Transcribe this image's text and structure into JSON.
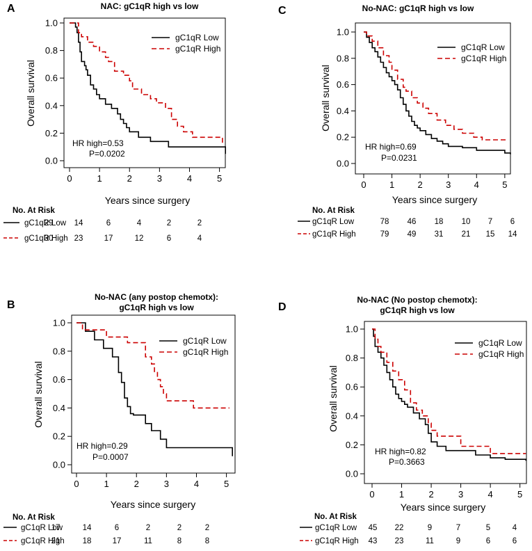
{
  "chart_data": [
    {
      "type": "line",
      "panel": "A",
      "title": [
        "NAC: gC1qR high vs low"
      ],
      "xlabel": "Years since surgery",
      "ylabel": "Overall survival",
      "xlim": [
        0,
        5.2
      ],
      "ylim": [
        0,
        1
      ],
      "xticks": [
        "0",
        "1",
        "2",
        "3",
        "4",
        "5"
      ],
      "yticks": [
        "0.0",
        "0.2",
        "0.4",
        "0.6",
        "0.8",
        "1.0"
      ],
      "legend": {
        "placement": "top-right",
        "low": "gC1qR Low",
        "high": "gC1qR High"
      },
      "annotation": [
        "HR high=0.53",
        "P=0.0202"
      ],
      "series": [
        {
          "name": "gC1qR Low",
          "style": "solid",
          "color": "#000000",
          "x": [
            0,
            0.1,
            0.2,
            0.25,
            0.3,
            0.35,
            0.4,
            0.5,
            0.55,
            0.6,
            0.7,
            0.8,
            0.9,
            1.0,
            1.2,
            1.4,
            1.6,
            1.7,
            1.8,
            1.9,
            2.0,
            2.3,
            2.7,
            3.3,
            3.8,
            5.2
          ],
          "y": [
            1,
            1,
            0.97,
            0.93,
            0.86,
            0.79,
            0.72,
            0.69,
            0.66,
            0.62,
            0.55,
            0.52,
            0.48,
            0.45,
            0.41,
            0.38,
            0.34,
            0.3,
            0.27,
            0.24,
            0.21,
            0.17,
            0.14,
            0.1,
            0.1,
            0.05
          ]
        },
        {
          "name": "gC1qR High",
          "style": "dashed",
          "color": "#cc0000",
          "x": [
            0,
            0.2,
            0.3,
            0.4,
            0.6,
            0.8,
            1.0,
            1.2,
            1.3,
            1.5,
            1.8,
            2.0,
            2.1,
            2.4,
            2.7,
            2.9,
            3.2,
            3.4,
            3.6,
            3.8,
            4.1,
            5.1
          ],
          "y": [
            1,
            1,
            0.93,
            0.9,
            0.86,
            0.83,
            0.79,
            0.75,
            0.72,
            0.65,
            0.62,
            0.58,
            0.52,
            0.48,
            0.45,
            0.42,
            0.38,
            0.3,
            0.25,
            0.21,
            0.17,
            0.13
          ]
        }
      ],
      "at_risk": {
        "header": "No. At Risk",
        "rows": [
          {
            "label": "gC1qR Low",
            "style": "solid",
            "values": [
              "29",
              "14",
              "6",
              "4",
              "2",
              "2"
            ]
          },
          {
            "label": "gC1qR High",
            "style": "dashed",
            "values": [
              "30",
              "23",
              "17",
              "12",
              "6",
              "4"
            ]
          }
        ]
      }
    },
    {
      "type": "line",
      "panel": "C",
      "title": [
        "No-NAC: gC1qR high vs low"
      ],
      "xlabel": "Years since surgery",
      "ylabel": "Overall survival",
      "xlim": [
        0,
        5.2
      ],
      "ylim": [
        0,
        1
      ],
      "xticks": [
        "0",
        "1",
        "2",
        "3",
        "4",
        "5"
      ],
      "yticks": [
        "0.0",
        "0.2",
        "0.4",
        "0.6",
        "0.8",
        "1.0"
      ],
      "legend": {
        "placement": "top-right",
        "low": "gC1qR Low",
        "high": "gC1qR High"
      },
      "annotation": [
        "HR high=0.69",
        "P=0.0231"
      ],
      "series": [
        {
          "name": "gC1qR Low",
          "style": "solid",
          "color": "#000000",
          "x": [
            0,
            0.1,
            0.2,
            0.3,
            0.4,
            0.5,
            0.6,
            0.7,
            0.8,
            0.9,
            1.0,
            1.1,
            1.2,
            1.3,
            1.4,
            1.5,
            1.6,
            1.7,
            1.8,
            1.9,
            2.0,
            2.2,
            2.4,
            2.6,
            2.8,
            3.0,
            3.5,
            4.0,
            5.0,
            5.2
          ],
          "y": [
            1,
            0.96,
            0.92,
            0.88,
            0.85,
            0.81,
            0.77,
            0.73,
            0.69,
            0.66,
            0.63,
            0.6,
            0.56,
            0.5,
            0.45,
            0.4,
            0.36,
            0.32,
            0.29,
            0.27,
            0.25,
            0.22,
            0.19,
            0.17,
            0.15,
            0.13,
            0.12,
            0.1,
            0.08,
            0.07
          ]
        },
        {
          "name": "gC1qR High",
          "style": "dashed",
          "color": "#cc0000",
          "x": [
            0,
            0.1,
            0.3,
            0.5,
            0.7,
            0.9,
            1.0,
            1.2,
            1.4,
            1.5,
            1.7,
            1.9,
            2.1,
            2.3,
            2.6,
            2.9,
            3.2,
            3.5,
            3.9,
            4.2,
            5.1
          ],
          "y": [
            1,
            0.97,
            0.93,
            0.88,
            0.82,
            0.77,
            0.71,
            0.64,
            0.58,
            0.55,
            0.5,
            0.46,
            0.42,
            0.38,
            0.33,
            0.29,
            0.26,
            0.23,
            0.2,
            0.18,
            0.18
          ]
        }
      ],
      "at_risk": {
        "header": "No. At Risk",
        "rows": [
          {
            "label": "gC1qR Low",
            "style": "solid",
            "values": [
              "78",
              "46",
              "18",
              "10",
              "7",
              "6"
            ]
          },
          {
            "label": "gC1qR High",
            "style": "dashed",
            "values": [
              "79",
              "49",
              "31",
              "21",
              "15",
              "14"
            ]
          }
        ]
      }
    },
    {
      "type": "line",
      "panel": "B",
      "title": [
        "No-NAC (any postop chemotx):",
        "gC1qR high vs low"
      ],
      "xlabel": "Years since surgery",
      "ylabel": "Overall survival",
      "xlim": [
        0,
        5.2
      ],
      "ylim": [
        0,
        1
      ],
      "xticks": [
        "0",
        "1",
        "2",
        "3",
        "4",
        "5"
      ],
      "yticks": [
        "0.0",
        "0.2",
        "0.4",
        "0.6",
        "0.8",
        "1.0"
      ],
      "legend": {
        "placement": "top-right",
        "low": "gC1qR Low",
        "high": "gC1qR High"
      },
      "annotation": [
        "HR high=0.29",
        "P=0.0007"
      ],
      "series": [
        {
          "name": "gC1qR Low",
          "style": "solid",
          "color": "#000000",
          "x": [
            0,
            0.3,
            0.6,
            0.9,
            1.2,
            1.4,
            1.5,
            1.6,
            1.7,
            1.8,
            1.9,
            2.0,
            2.3,
            2.5,
            2.8,
            3.0,
            5.0,
            5.2
          ],
          "y": [
            1,
            0.94,
            0.88,
            0.82,
            0.76,
            0.65,
            0.58,
            0.47,
            0.41,
            0.36,
            0.35,
            0.35,
            0.29,
            0.24,
            0.18,
            0.12,
            0.12,
            0.06
          ]
        },
        {
          "name": "gC1qR High",
          "style": "dashed",
          "color": "#cc0000",
          "x": [
            0,
            0.2,
            1.0,
            1.7,
            2.3,
            2.5,
            2.6,
            2.7,
            2.8,
            2.9,
            3.0,
            3.5,
            3.9,
            4.2,
            5.1
          ],
          "y": [
            1,
            0.95,
            0.9,
            0.86,
            0.76,
            0.71,
            0.65,
            0.6,
            0.55,
            0.5,
            0.45,
            0.45,
            0.4,
            0.4,
            0.4
          ]
        }
      ],
      "at_risk": {
        "header": "No. At Risk",
        "rows": [
          {
            "label": "gC1qR Low",
            "style": "solid",
            "values": [
              "17",
              "14",
              "6",
              "2",
              "2",
              "2"
            ]
          },
          {
            "label": "gC1qR High",
            "style": "dashed",
            "values": [
              "21",
              "18",
              "17",
              "11",
              "8",
              "8"
            ]
          }
        ]
      }
    },
    {
      "type": "line",
      "panel": "D",
      "title": [
        "No-NAC (No postop chemotx):",
        "gC1qR high vs low"
      ],
      "xlabel": "Years since surgery",
      "ylabel": "Overall survival",
      "xlim": [
        0,
        5.2
      ],
      "ylim": [
        0,
        1
      ],
      "xticks": [
        "0",
        "1",
        "2",
        "3",
        "4",
        "5"
      ],
      "yticks": [
        "0.0",
        "0.2",
        "0.4",
        "0.6",
        "0.8",
        "1.0"
      ],
      "legend": {
        "placement": "top-right",
        "low": "gC1qR Low",
        "high": "gC1qR High"
      },
      "annotation": [
        "HR high=0.82",
        "P=0.3663"
      ],
      "series": [
        {
          "name": "gC1qR Low",
          "style": "solid",
          "color": "#000000",
          "x": [
            0,
            0.05,
            0.1,
            0.2,
            0.3,
            0.4,
            0.5,
            0.6,
            0.7,
            0.8,
            0.9,
            1.0,
            1.1,
            1.2,
            1.4,
            1.6,
            1.8,
            1.9,
            2.0,
            2.2,
            2.5,
            3.0,
            3.5,
            4.0,
            4.5,
            5.2
          ],
          "y": [
            1,
            0.95,
            0.88,
            0.84,
            0.8,
            0.75,
            0.7,
            0.65,
            0.6,
            0.55,
            0.52,
            0.5,
            0.48,
            0.46,
            0.42,
            0.38,
            0.34,
            0.28,
            0.22,
            0.19,
            0.16,
            0.16,
            0.13,
            0.11,
            0.1,
            0.09
          ]
        },
        {
          "name": "gC1qR High",
          "style": "dashed",
          "color": "#cc0000",
          "x": [
            0,
            0.1,
            0.2,
            0.3,
            0.5,
            0.7,
            0.9,
            1.1,
            1.3,
            1.5,
            1.7,
            1.9,
            2.0,
            2.2,
            2.5,
            3.0,
            3.5,
            4.0,
            5.2
          ],
          "y": [
            1,
            0.93,
            0.88,
            0.84,
            0.77,
            0.71,
            0.65,
            0.58,
            0.49,
            0.44,
            0.4,
            0.35,
            0.3,
            0.26,
            0.26,
            0.19,
            0.19,
            0.14,
            0.14
          ]
        }
      ],
      "at_risk": {
        "header": "No. At Risk",
        "rows": [
          {
            "label": "gC1qR Low",
            "style": "solid",
            "values": [
              "45",
              "22",
              "9",
              "7",
              "5",
              "4"
            ]
          },
          {
            "label": "gC1qR High",
            "style": "dashed",
            "values": [
              "43",
              "23",
              "11",
              "9",
              "6",
              "6"
            ]
          }
        ]
      }
    }
  ]
}
